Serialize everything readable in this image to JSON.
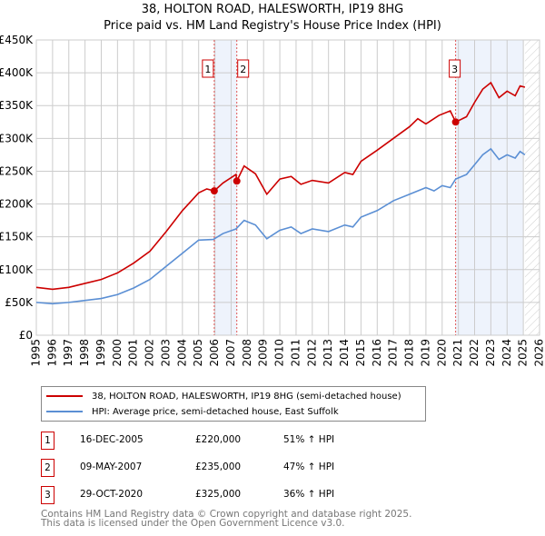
{
  "title": "38, HOLTON ROAD, HALESWORTH, IP19 8HG",
  "subtitle": "Price paid vs. HM Land Registry's House Price Index (HPI)",
  "chart_data": {
    "type": "line",
    "xlim": [
      1995,
      2026
    ],
    "ylim": [
      0,
      450000
    ],
    "yticks": [
      0,
      50000,
      100000,
      150000,
      200000,
      250000,
      300000,
      350000,
      400000,
      450000
    ],
    "ytick_labels": [
      "£0",
      "£50K",
      "£100K",
      "£150K",
      "£200K",
      "£250K",
      "£300K",
      "£350K",
      "£400K",
      "£450K"
    ],
    "xticks": [
      1995,
      1996,
      1997,
      1998,
      1999,
      2000,
      2001,
      2002,
      2003,
      2004,
      2005,
      2006,
      2007,
      2008,
      2009,
      2010,
      2011,
      2012,
      2013,
      2014,
      2015,
      2016,
      2017,
      2018,
      2019,
      2020,
      2021,
      2022,
      2023,
      2024,
      2025,
      2026
    ],
    "grid": true,
    "series": [
      {
        "name": "38, HOLTON ROAD, HALESWORTH, IP19 8HG (semi-detached house)",
        "color": "#cc0000",
        "x": [
          1995,
          1996,
          1997,
          1998,
          1999,
          2000,
          2001,
          2002,
          2003,
          2004,
          2005,
          2005.5,
          2005.96,
          2006.5,
          2007.3,
          2007.35,
          2007.8,
          2008.5,
          2009.2,
          2010,
          2010.7,
          2011.3,
          2012,
          2013,
          2014,
          2014.5,
          2015,
          2016,
          2017,
          2018,
          2018.5,
          2019,
          2019.8,
          2020.5,
          2020.83,
          2021.5,
          2022,
          2022.5,
          2023,
          2023.5,
          2024,
          2024.5,
          2024.8,
          2025.1
        ],
        "y": [
          73000,
          70000,
          73000,
          79000,
          85000,
          95000,
          110000,
          128000,
          158000,
          190000,
          217000,
          223000,
          220000,
          232000,
          245000,
          235000,
          258000,
          246000,
          215000,
          238000,
          242000,
          230000,
          236000,
          232000,
          248000,
          245000,
          265000,
          282000,
          300000,
          318000,
          330000,
          322000,
          335000,
          342000,
          325000,
          333000,
          355000,
          375000,
          385000,
          362000,
          372000,
          365000,
          380000,
          378000
        ]
      },
      {
        "name": "HPI: Average price, semi-detached house, East Suffolk",
        "color": "#5b8fd4",
        "x": [
          1995,
          1996,
          1997,
          1998,
          1999,
          2000,
          2001,
          2002,
          2003,
          2004,
          2005,
          2005.9,
          2006.5,
          2007.3,
          2007.8,
          2008.5,
          2009.2,
          2010,
          2010.7,
          2011.3,
          2012,
          2013,
          2014,
          2014.5,
          2015,
          2016,
          2017,
          2018,
          2019,
          2019.5,
          2020,
          2020.5,
          2020.83,
          2021.5,
          2022,
          2022.5,
          2023,
          2023.5,
          2024,
          2024.5,
          2024.8,
          2025.1
        ],
        "y": [
          50000,
          48000,
          50000,
          53000,
          56000,
          62000,
          72000,
          85000,
          105000,
          125000,
          145000,
          146000,
          155000,
          162000,
          175000,
          168000,
          147000,
          160000,
          165000,
          155000,
          162000,
          158000,
          168000,
          165000,
          180000,
          190000,
          205000,
          215000,
          225000,
          220000,
          228000,
          225000,
          238000,
          245000,
          260000,
          275000,
          284000,
          268000,
          275000,
          270000,
          280000,
          275000
        ]
      }
    ],
    "sales": [
      {
        "label": "1",
        "date": "16-DEC-2005",
        "x": 2005.96,
        "price": "£220,000",
        "value": 220000,
        "hpi": "51% ↑ HPI"
      },
      {
        "label": "2",
        "date": "09-MAY-2007",
        "x": 2007.35,
        "price": "£235,000",
        "value": 235000,
        "hpi": "47% ↑ HPI"
      },
      {
        "label": "3",
        "date": "29-OCT-2020",
        "x": 2020.83,
        "price": "£325,000",
        "value": 325000,
        "hpi": "36% ↑ HPI"
      }
    ],
    "shaded": [
      [
        2005.96,
        2007.35
      ],
      [
        2020.83,
        2025.0
      ]
    ],
    "hatched_from": 2025.1
  },
  "legend": {
    "items": [
      "38, HOLTON ROAD, HALESWORTH, IP19 8HG (semi-detached house)",
      "HPI: Average price, semi-detached house, East Suffolk"
    ]
  },
  "footer": [
    "Contains HM Land Registry data © Crown copyright and database right 2025.",
    "This data is licensed under the Open Government Licence v3.0."
  ]
}
